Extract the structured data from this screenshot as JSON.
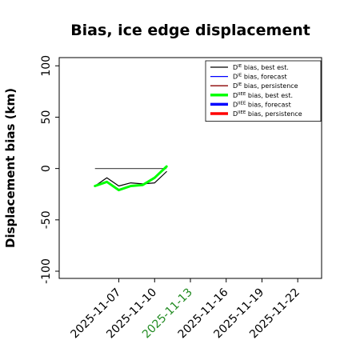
{
  "chart_data": {
    "type": "line",
    "title": "Bias, ice edge displacement",
    "ylabel": "Displacement bias (km)",
    "xlabel": "",
    "ylim": [
      -107,
      108
    ],
    "yticks": [
      -100,
      -50,
      0,
      50,
      100
    ],
    "xlim": [
      "2025-11-02",
      "2025-11-24"
    ],
    "xticks": [
      {
        "date": "2025-11-07",
        "label": "2025-11-07",
        "color": "#000000"
      },
      {
        "date": "2025-11-10",
        "label": "2025-11-10",
        "color": "#000000"
      },
      {
        "date": "2025-11-13",
        "label": "2025-11-13",
        "color": "#228b22"
      },
      {
        "date": "2025-11-16",
        "label": "2025-11-16",
        "color": "#000000"
      },
      {
        "date": "2025-11-19",
        "label": "2025-11-19",
        "color": "#000000"
      },
      {
        "date": "2025-11-22",
        "label": "2025-11-22",
        "color": "#000000"
      }
    ],
    "grid": false,
    "legend_position": "top-right",
    "series": [
      {
        "name": "D^IE bias, best est.",
        "color": "#000000",
        "width": 1.2,
        "points": [
          [
            "2025-11-05",
            -17
          ],
          [
            "2025-11-06",
            -9
          ],
          [
            "2025-11-07",
            -17
          ],
          [
            "2025-11-08",
            -14
          ],
          [
            "2025-11-09",
            -15
          ],
          [
            "2025-11-10",
            -14
          ],
          [
            "2025-11-11",
            -3
          ]
        ]
      },
      {
        "name": "D^IE bias, forecast",
        "color": "#0000ff",
        "width": 1.2,
        "points": []
      },
      {
        "name": "D^IE bias, persistence",
        "color": "#8b0000",
        "width": 1.2,
        "points": []
      },
      {
        "name": "D^IIEE bias, best est.",
        "color": "#00ff00",
        "width": 3,
        "points": [
          [
            "2025-11-05",
            -17
          ],
          [
            "2025-11-06",
            -13
          ],
          [
            "2025-11-07",
            -21
          ],
          [
            "2025-11-08",
            -17
          ],
          [
            "2025-11-09",
            -16
          ],
          [
            "2025-11-10",
            -9
          ],
          [
            "2025-11-11",
            2
          ]
        ]
      },
      {
        "name": "D^IIEE bias, forecast",
        "color": "#0000ff",
        "width": 3,
        "points": []
      },
      {
        "name": "D^IIEE bias, persistence",
        "color": "#ff0000",
        "width": 3,
        "points": []
      }
    ],
    "reference_line": {
      "y": 0,
      "from": "2025-11-05",
      "to": "2025-11-11",
      "color": "#555555"
    },
    "legend_entries": [
      {
        "prefix": "D",
        "sup": "IE",
        "suffix": " bias, best est.",
        "color": "#000000",
        "thick": false
      },
      {
        "prefix": "D",
        "sup": "IE",
        "suffix": " bias, forecast",
        "color": "#0000ff",
        "thick": false
      },
      {
        "prefix": "D",
        "sup": "IE",
        "suffix": " bias, persistence",
        "color": "#8b0000",
        "thick": false
      },
      {
        "prefix": "D",
        "sup": "IIEE",
        "suffix": " bias, best est.",
        "color": "#00ff00",
        "thick": true
      },
      {
        "prefix": "D",
        "sup": "IIEE",
        "suffix": " bias, forecast",
        "color": "#0000ff",
        "thick": true
      },
      {
        "prefix": "D",
        "sup": "IIEE",
        "suffix": " bias, persistence",
        "color": "#ff0000",
        "thick": true
      }
    ]
  }
}
